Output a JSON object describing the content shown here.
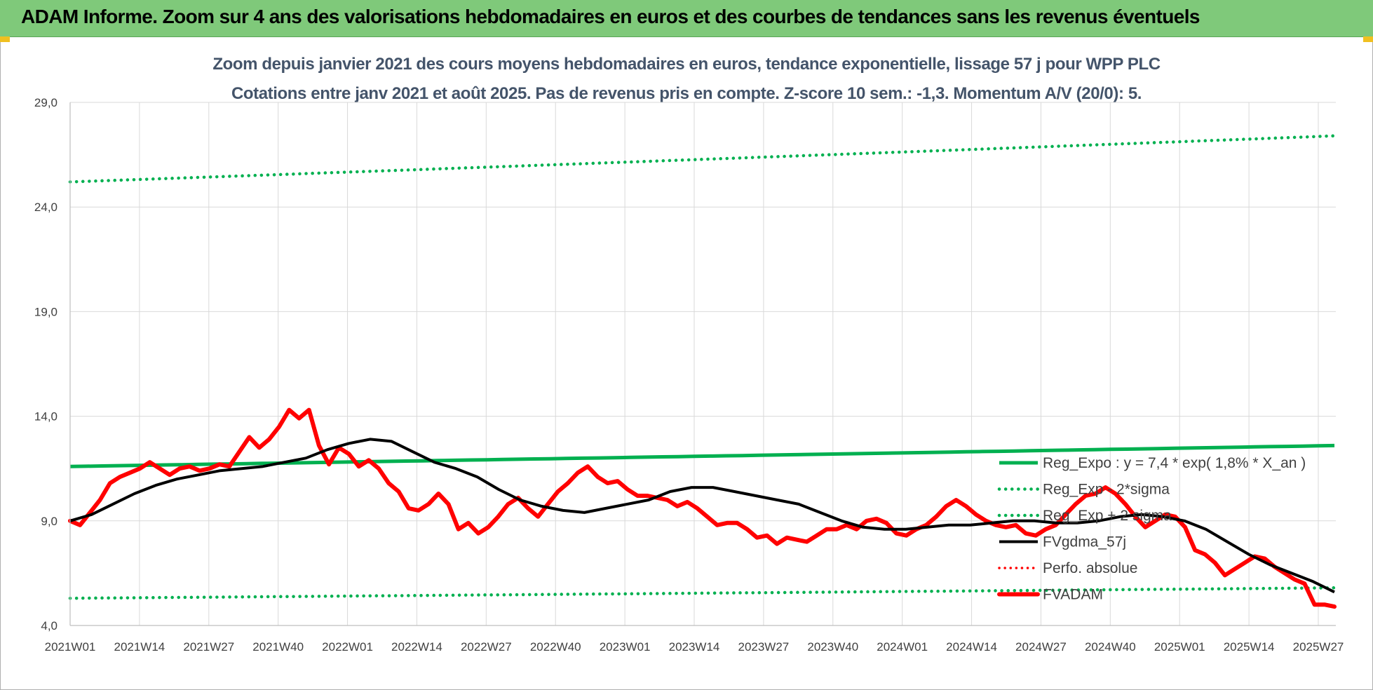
{
  "header": {
    "title": "ADAM Informe. Zoom sur 4 ans des valorisations hebdomadaires en euros et des courbes de tendances sans les revenus éventuels"
  },
  "colors": {
    "header_bg": "#7fc97a",
    "reg_green": "#00b050",
    "actual_red": "#ff0000",
    "smooth_black": "#000000",
    "grid": "#d9d9d9",
    "title": "#44546a"
  },
  "chart_data": {
    "type": "line",
    "title": "Zoom depuis janvier 2021 des cours moyens hebdomadaires en euros, tendance exponentielle, lissage 57 j pour WPP PLC",
    "subtitle": "Cotations entre janv 2021 et août 2025.  Pas de revenus pris en compte. Z-score 10 sem.: -1,3. Momentum A/V (20/0): 5.",
    "ylim": [
      4.0,
      29.0
    ],
    "y_ticks": [
      "4,0",
      "9,0",
      "14,0",
      "19,0",
      "24,0",
      "29,0"
    ],
    "x_ticks": [
      "2021W01",
      "2021W14",
      "2021W27",
      "2021W40",
      "2022W01",
      "2022W14",
      "2022W27",
      "2022W40",
      "2023W01",
      "2023W14",
      "2023W27",
      "2023W40",
      "2024W01",
      "2024W14",
      "2024W27",
      "2024W40",
      "2025W01",
      "2025W14",
      "2025W27"
    ],
    "grid": true,
    "legend_position": "right",
    "series": [
      {
        "name": "Reg_Expo : y = 7,4 * exp( 1,8% *  X_an )",
        "style": "solid-green",
        "start": 11.6,
        "end": 12.6
      },
      {
        "name": "Reg_Exp - 2*sigma",
        "style": "dotted-green",
        "start": 25.2,
        "end": 27.4
      },
      {
        "name": "Reg_Exp + 2 sigma",
        "style": "dotted-green",
        "start": 5.3,
        "end": 5.8
      },
      {
        "name": "FVgdma_57j",
        "style": "solid-black",
        "values": [
          9.0,
          9.3,
          9.8,
          10.3,
          10.7,
          11.0,
          11.2,
          11.4,
          11.5,
          11.6,
          11.8,
          12.0,
          12.4,
          12.7,
          12.9,
          12.8,
          12.3,
          11.8,
          11.5,
          11.1,
          10.5,
          10.0,
          9.7,
          9.5,
          9.4,
          9.6,
          9.8,
          10.0,
          10.4,
          10.6,
          10.6,
          10.4,
          10.2,
          10.0,
          9.8,
          9.4,
          9.0,
          8.7,
          8.6,
          8.6,
          8.7,
          8.8,
          8.8,
          8.9,
          9.0,
          9.0,
          8.9,
          8.9,
          9.0,
          9.2,
          9.3,
          9.2,
          9.0,
          8.6,
          8.0,
          7.4,
          6.9,
          6.5,
          6.1,
          5.6
        ]
      },
      {
        "name": "Perfo. absolue",
        "style": "dotted-red",
        "values": []
      },
      {
        "name": "FVADAM",
        "style": "solid-red",
        "values": [
          9.0,
          8.8,
          9.4,
          10.0,
          10.8,
          11.1,
          11.3,
          11.5,
          11.8,
          11.5,
          11.2,
          11.5,
          11.6,
          11.4,
          11.5,
          11.7,
          11.6,
          12.3,
          13.0,
          12.5,
          12.9,
          13.5,
          14.3,
          13.9,
          14.3,
          12.6,
          11.7,
          12.5,
          12.2,
          11.6,
          11.9,
          11.5,
          10.8,
          10.4,
          9.6,
          9.5,
          9.8,
          10.3,
          9.8,
          8.6,
          8.9,
          8.4,
          8.7,
          9.2,
          9.8,
          10.1,
          9.6,
          9.2,
          9.8,
          10.4,
          10.8,
          11.3,
          11.6,
          11.1,
          10.8,
          10.9,
          10.5,
          10.2,
          10.2,
          10.1,
          10.0,
          9.7,
          9.9,
          9.6,
          9.2,
          8.8,
          8.9,
          8.9,
          8.6,
          8.2,
          8.3,
          7.9,
          8.2,
          8.1,
          8.0,
          8.3,
          8.6,
          8.6,
          8.8,
          8.6,
          9.0,
          9.1,
          8.9,
          8.4,
          8.3,
          8.6,
          8.8,
          9.2,
          9.7,
          10.0,
          9.7,
          9.3,
          9.0,
          8.8,
          8.7,
          8.8,
          8.4,
          8.3,
          8.6,
          8.8,
          9.3,
          9.8,
          10.2,
          10.3,
          10.6,
          10.3,
          9.8,
          9.2,
          8.7,
          9.0,
          9.3,
          9.2,
          8.7,
          7.6,
          7.4,
          7.0,
          6.4,
          6.7,
          7.0,
          7.3,
          7.2,
          6.8,
          6.5,
          6.2,
          6.0,
          5.0,
          5.0,
          4.9
        ]
      }
    ]
  }
}
